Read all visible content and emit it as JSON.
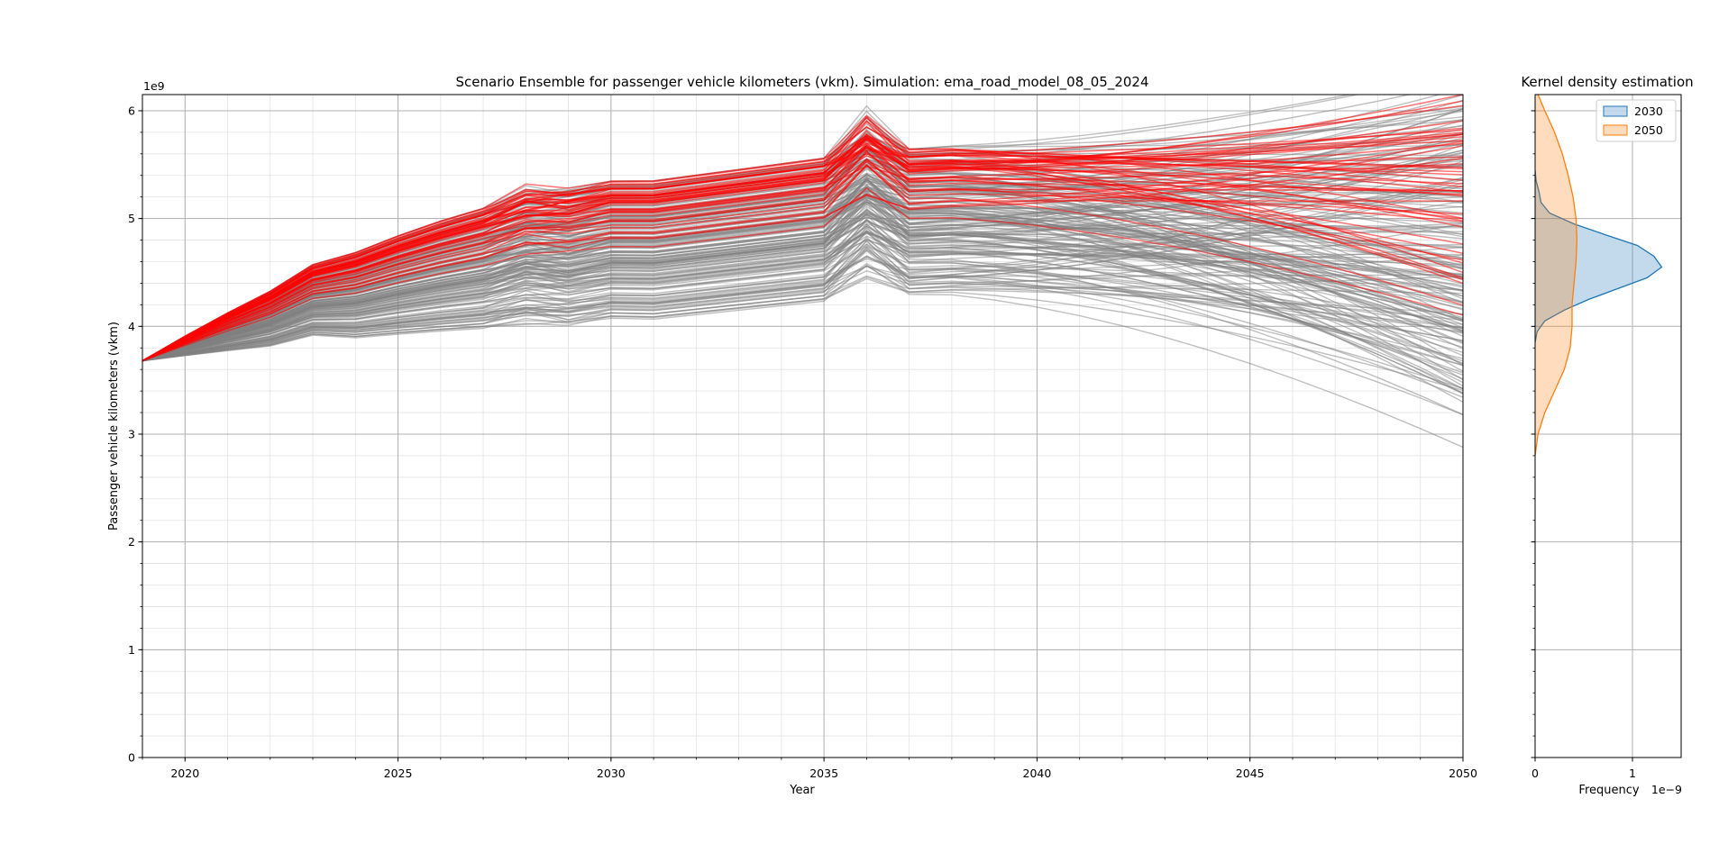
{
  "chart_data": [
    {
      "type": "line",
      "title": "Scenario Ensemble for passenger vehicle kilometers (vkm). Simulation: ema_road_model_08_05_2024",
      "xlabel": "Year",
      "ylabel": "Passenger vehicle kilometers (vkm)",
      "y_offset_text": "1e9",
      "xlim": [
        2019,
        2050
      ],
      "ylim": [
        0,
        6.15
      ],
      "y_unit_multiplier": 1000000000,
      "x_major_ticks": [
        2020,
        2025,
        2030,
        2035,
        2040,
        2045,
        2050
      ],
      "x_tick_labels": [
        "2020",
        "2025",
        "2030",
        "2035",
        "2040",
        "2045",
        "2050"
      ],
      "y_major_ticks": [
        0,
        1,
        2,
        3,
        4,
        5,
        6
      ],
      "y_tick_labels": [
        "0",
        "1",
        "2",
        "3",
        "4",
        "5",
        "6"
      ],
      "grid": true,
      "colors": {
        "background_runs": "#808080",
        "highlighted_runs": "#ff0000"
      },
      "start": {
        "x": 2019,
        "y": 3.68
      },
      "bands_2030": {
        "background": [
          4.0,
          5.3
        ],
        "highlighted": [
          4.55,
          5.3
        ]
      },
      "bands_2050": {
        "background": [
          3.15,
          6.1
        ],
        "highlighted": [
          4.2,
          6.1
        ]
      },
      "spike": {
        "x": 2036,
        "y": 5.77
      }
    },
    {
      "type": "area",
      "title": "Kernel density estimation",
      "xlabel": "Frequency",
      "x_offset_text": "1e−9",
      "xlim": [
        0,
        1.5
      ],
      "x_major_ticks": [
        0,
        1
      ],
      "x_tick_labels": [
        "0",
        "1"
      ],
      "ylim": [
        0,
        6.15
      ],
      "grid": true,
      "legend": {
        "placement": "upper-right",
        "entries": [
          "2030",
          "2050"
        ]
      },
      "series": [
        {
          "name": "2030",
          "color": "#1f77b4",
          "points": [
            [
              3.85,
              0.0
            ],
            [
              3.95,
              0.02
            ],
            [
              4.05,
              0.1
            ],
            [
              4.15,
              0.3
            ],
            [
              4.25,
              0.55
            ],
            [
              4.35,
              0.85
            ],
            [
              4.45,
              1.15
            ],
            [
              4.55,
              1.3
            ],
            [
              4.65,
              1.22
            ],
            [
              4.75,
              1.05
            ],
            [
              4.85,
              0.72
            ],
            [
              4.95,
              0.4
            ],
            [
              5.05,
              0.15
            ],
            [
              5.15,
              0.06
            ],
            [
              5.25,
              0.04
            ],
            [
              5.35,
              0.01
            ],
            [
              5.45,
              0.0
            ]
          ]
        },
        {
          "name": "2050",
          "color": "#ff7f0e",
          "points": [
            [
              2.8,
              0.0
            ],
            [
              3.0,
              0.03
            ],
            [
              3.2,
              0.1
            ],
            [
              3.4,
              0.2
            ],
            [
              3.6,
              0.3
            ],
            [
              3.8,
              0.36
            ],
            [
              4.0,
              0.38
            ],
            [
              4.2,
              0.38
            ],
            [
              4.4,
              0.4
            ],
            [
              4.6,
              0.42
            ],
            [
              4.8,
              0.43
            ],
            [
              5.0,
              0.42
            ],
            [
              5.2,
              0.39
            ],
            [
              5.4,
              0.34
            ],
            [
              5.6,
              0.28
            ],
            [
              5.8,
              0.2
            ],
            [
              6.0,
              0.1
            ],
            [
              6.15,
              0.03
            ]
          ]
        }
      ]
    }
  ]
}
